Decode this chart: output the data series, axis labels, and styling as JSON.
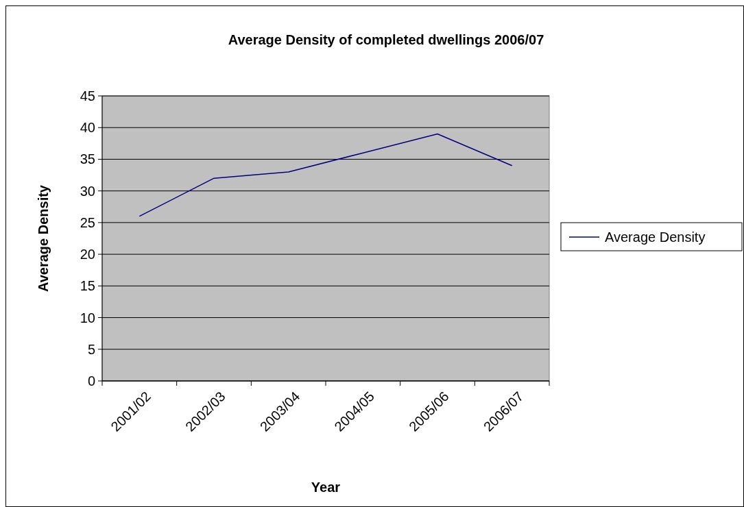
{
  "chart_data": {
    "type": "line",
    "title": "Average Density of completed dwellings 2006/07",
    "xlabel": "Year",
    "ylabel": "Average Density",
    "categories": [
      "2001/02",
      "2002/03",
      "2003/04",
      "2004/05",
      "2005/06",
      "2006/07"
    ],
    "series": [
      {
        "name": "Average Density",
        "color": "#000080",
        "values": [
          26,
          32,
          33,
          36,
          39,
          34
        ]
      }
    ],
    "ylim": [
      0,
      45
    ],
    "yticks": [
      0,
      5,
      10,
      15,
      20,
      25,
      30,
      35,
      40,
      45
    ],
    "grid": "y",
    "legend": "right",
    "marker": "none"
  }
}
